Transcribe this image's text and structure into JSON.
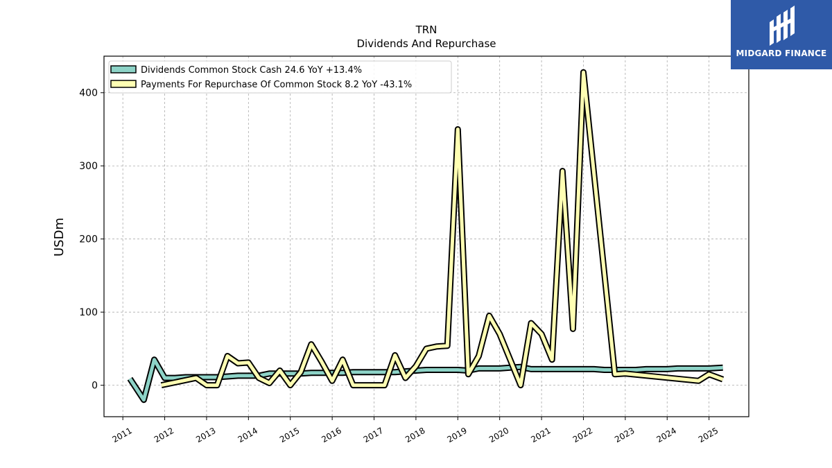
{
  "chart_data": {
    "type": "line",
    "title": "TRN",
    "subtitle": "Dividends And Repurchase",
    "xlabel": "",
    "ylabel": "USDm",
    "xlim": [
      2010.55,
      2025.95
    ],
    "ylim": [
      -43,
      450
    ],
    "x_ticks": [
      "2011",
      "2012",
      "2013",
      "2014",
      "2015",
      "2016",
      "2017",
      "2018",
      "2019",
      "2020",
      "2021",
      "2022",
      "2023",
      "2024",
      "2025"
    ],
    "y_ticks": [
      0,
      100,
      200,
      300,
      400
    ],
    "grid": true,
    "legend_position": "top-left",
    "series": [
      {
        "name": "Dividends Common Stock Cash  24.6 YoY +13.4%",
        "color": "#8dd3c7",
        "x": [
          2011.17,
          2011.5,
          2011.75,
          2012.0,
          2012.25,
          2012.5,
          2012.75,
          2013.0,
          2013.25,
          2013.5,
          2013.75,
          2014.0,
          2014.25,
          2014.5,
          2014.75,
          2015.0,
          2015.25,
          2015.5,
          2015.75,
          2016.0,
          2016.25,
          2016.5,
          2016.75,
          2017.0,
          2017.25,
          2017.5,
          2017.75,
          2018.0,
          2018.25,
          2018.5,
          2018.75,
          2019.0,
          2019.25,
          2019.5,
          2019.75,
          2020.0,
          2020.25,
          2020.5,
          2020.75,
          2021.0,
          2021.25,
          2021.5,
          2021.75,
          2022.0,
          2022.25,
          2022.5,
          2022.75,
          2023.0,
          2023.25,
          2023.5,
          2023.75,
          2024.0,
          2024.25,
          2024.5,
          2024.75,
          2025.0,
          2025.33
        ],
        "y": [
          9,
          -20,
          35,
          10,
          10,
          11,
          11,
          11,
          11,
          12,
          13,
          13,
          13,
          16,
          16,
          16,
          16,
          17,
          17,
          17,
          17,
          18,
          18,
          18,
          18,
          18,
          19,
          20,
          21,
          21,
          21,
          21,
          20,
          23,
          23,
          23,
          24,
          25,
          22,
          22,
          22,
          22,
          22,
          22,
          22,
          21,
          21,
          21,
          21,
          22,
          22,
          22,
          23,
          23,
          23,
          23,
          24
        ]
      },
      {
        "name": "Payments For Repurchase Of Common Stock  8.2 YoY -43.1%",
        "color": "#ffffb3",
        "x": [
          2011.92,
          2012.75,
          2013.0,
          2013.25,
          2013.5,
          2013.75,
          2014.0,
          2014.25,
          2014.5,
          2014.75,
          2015.0,
          2015.25,
          2015.5,
          2015.75,
          2016.0,
          2016.25,
          2016.5,
          2016.75,
          2017.0,
          2017.25,
          2017.5,
          2017.75,
          2018.0,
          2018.25,
          2018.5,
          2018.75,
          2019.0,
          2019.25,
          2019.5,
          2019.75,
          2020.0,
          2020.25,
          2020.5,
          2020.75,
          2021.0,
          2021.25,
          2021.5,
          2021.75,
          2022.0,
          2022.75,
          2023.0,
          2024.75,
          2025.0,
          2025.33
        ],
        "y": [
          0,
          10,
          0,
          0,
          40,
          30,
          31,
          10,
          3,
          20,
          0,
          18,
          56,
          32,
          6,
          35,
          0,
          0,
          0,
          0,
          41,
          10,
          26,
          50,
          53,
          54,
          350,
          15,
          40,
          95,
          70,
          35,
          0,
          85,
          70,
          35,
          293,
          77,
          428,
          15,
          16,
          6,
          15,
          8
        ]
      }
    ]
  },
  "logo": {
    "text": "MIDGARD FINANCE"
  }
}
